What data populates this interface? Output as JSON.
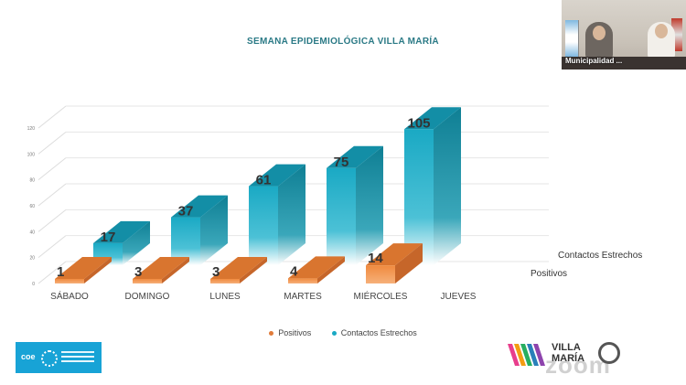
{
  "chart_data": {
    "type": "bar",
    "title": "SEMANA EPIDEMIOLÓGICA VILLA MARÍA",
    "categories": [
      "SÁBADO",
      "DOMINGO",
      "LUNES",
      "MARTES",
      "MIÉRCOLES",
      "JUEVES"
    ],
    "series": [
      {
        "name": "Positivos",
        "values": [
          1,
          3,
          3,
          4,
          14,
          null
        ],
        "color": "#e07b39"
      },
      {
        "name": "Contactos Estrechos",
        "values": [
          17,
          37,
          61,
          75,
          105,
          null
        ],
        "color": "#1aa9c4"
      }
    ],
    "data_labels": {
      "Positivos": [
        "1",
        "3",
        "3",
        "4",
        "14",
        ""
      ],
      "Contactos Estrechos": [
        "17",
        "37",
        "61",
        "75",
        "105",
        ""
      ]
    },
    "ylim": [
      0,
      120
    ],
    "yticks": [
      "0",
      "20",
      "40",
      "60",
      "80",
      "100",
      "120"
    ],
    "depth_labels": [
      "Contactos Estrechos",
      "Positivos"
    ],
    "legend": [
      "Positivos",
      "Contactos Estrechos"
    ]
  },
  "video": {
    "label": "Municipalidad ..."
  },
  "branding": {
    "right_logo_line1": "VILLA",
    "right_logo_line2": "MARÍA",
    "watermark": "zoom",
    "left_logo_text": "coe"
  }
}
